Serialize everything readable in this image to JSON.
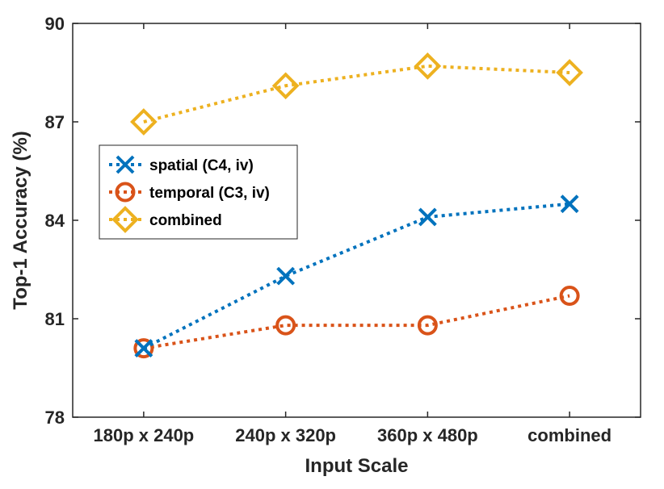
{
  "chart_data": {
    "type": "line",
    "title": "",
    "xlabel": "Input Scale",
    "ylabel": "Top-1 Accuracy (%)",
    "categories": [
      "180p x 240p",
      "240p x 320p",
      "360p x 480p",
      "combined"
    ],
    "ylim": [
      78,
      90
    ],
    "yticks": [
      78,
      81,
      84,
      87,
      90
    ],
    "ytick_labels": [
      "78",
      "81",
      "84",
      "87",
      "90"
    ],
    "grid": false,
    "legend_position": "upper-left",
    "series": [
      {
        "name": "spatial (C4, iv)",
        "marker": "x",
        "color": "#0072BD",
        "values": [
          80.1,
          82.3,
          84.1,
          84.5
        ]
      },
      {
        "name": "temporal (C3, iv)",
        "marker": "circle",
        "color": "#D95319",
        "values": [
          80.1,
          80.8,
          80.8,
          81.7
        ]
      },
      {
        "name": "combined",
        "marker": "diamond",
        "color": "#EDB120",
        "values": [
          87.0,
          88.1,
          88.7,
          88.5
        ]
      }
    ]
  }
}
